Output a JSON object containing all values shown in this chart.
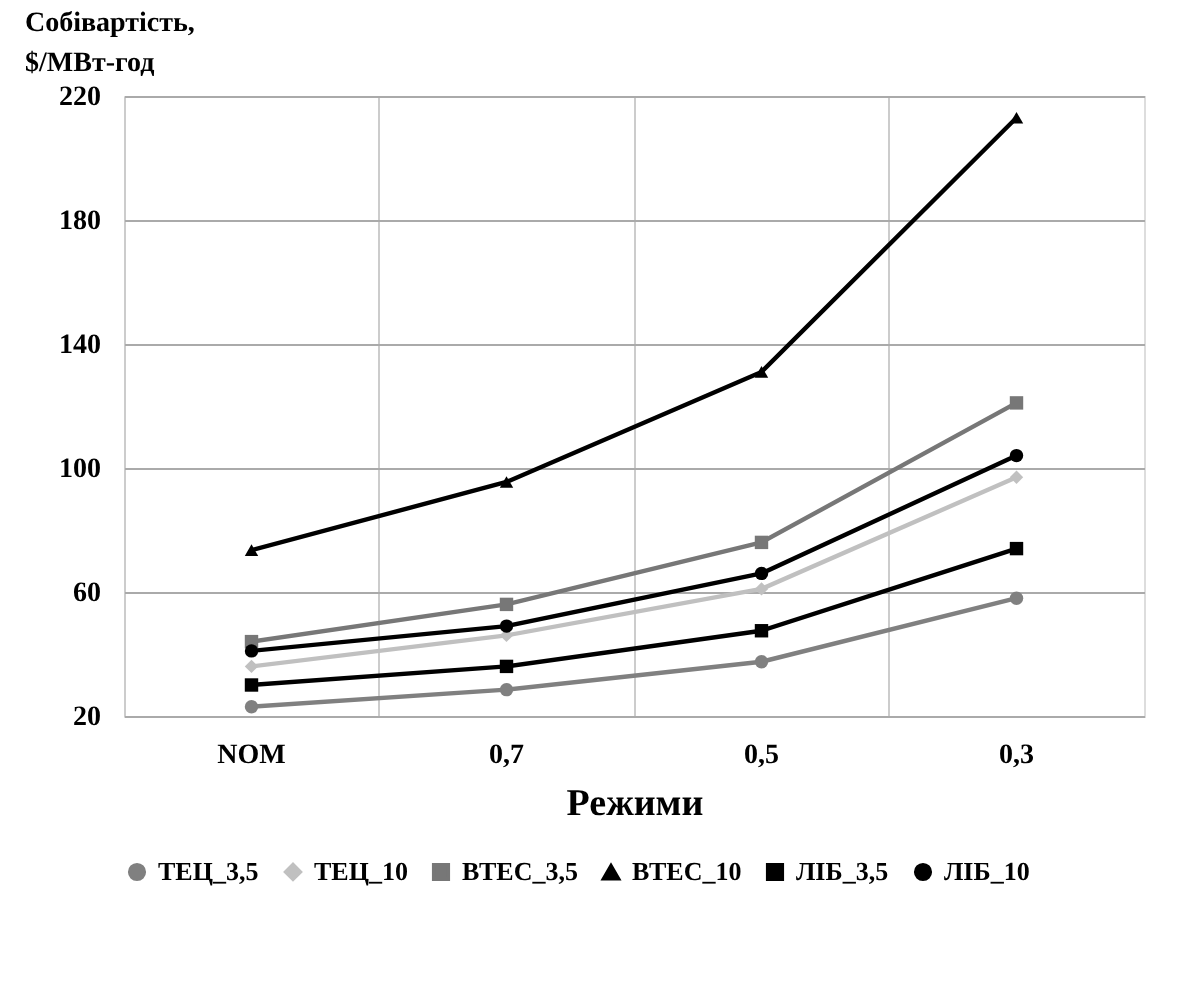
{
  "chart_data": {
    "type": "line",
    "xlabel": "Режими",
    "ylabel": "Собівартість,\n$/МВт-год",
    "categories": [
      "NOM",
      "0,7",
      "0,5",
      "0,3"
    ],
    "series": [
      {
        "name": "ТЕЦ_3,5",
        "color": "#808080",
        "marker": "circle",
        "values": [
          23,
          28.5,
          37.5,
          58
        ]
      },
      {
        "name": "ТЕЦ_10",
        "color": "#c0c0c0",
        "marker": "diamond",
        "values": [
          36,
          46,
          61,
          97
        ]
      },
      {
        "name": "ВТЕС_3,5",
        "color": "#777777",
        "marker": "square",
        "values": [
          44,
          56,
          76,
          121
        ]
      },
      {
        "name": "ВТЕС_10",
        "color": "#000000",
        "marker": "triangle",
        "values": [
          73.5,
          95.5,
          131,
          213
        ]
      },
      {
        "name": "ЛІБ_3,5",
        "color": "#000000",
        "marker": "square",
        "values": [
          30,
          36,
          47.5,
          74
        ]
      },
      {
        "name": "ЛІБ_10",
        "color": "#000000",
        "marker": "circle",
        "values": [
          41,
          49,
          66,
          104
        ]
      }
    ],
    "ylim": [
      20,
      220
    ],
    "yticks": [
      20,
      60,
      100,
      140,
      180,
      220
    ],
    "grid": true,
    "legend": "bottom",
    "line_style": "solid"
  }
}
